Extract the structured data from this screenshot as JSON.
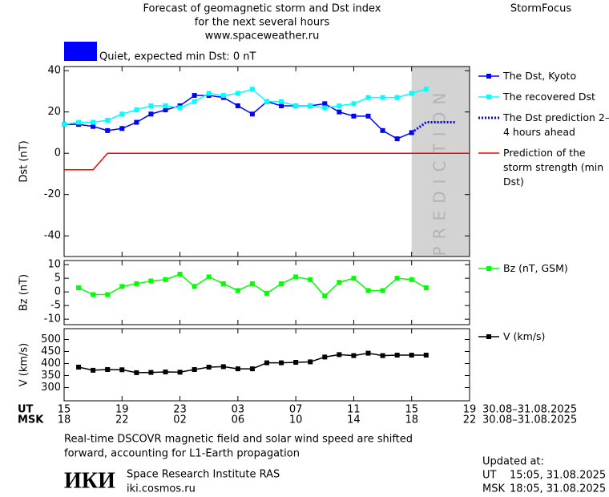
{
  "header": {
    "title": [
      "Forecast of geomagnetic storm and Dst index",
      "for the next several hours",
      "www.spaceweather.ru"
    ],
    "brand": "StormFocus"
  },
  "status": {
    "color": "#0000ff",
    "text": "Quiet, expected min Dst: 0 nT"
  },
  "chart_data": [
    {
      "type": "line",
      "ylabel": "Dst (nT)",
      "xlim": [
        0,
        28
      ],
      "ylim": [
        -50,
        42
      ],
      "yticks": [
        -40,
        -20,
        0,
        20,
        40
      ],
      "shade": {
        "x": [
          24,
          28
        ],
        "color": "#d3d3d3",
        "label": "PREDICTION"
      },
      "series": [
        {
          "name": "The Dst, Kyoto",
          "color": "#0000ff",
          "marker": "square",
          "x": [
            0,
            1,
            2,
            3,
            4,
            5,
            6,
            7,
            8,
            9,
            10,
            11,
            12,
            13,
            14,
            15,
            16,
            17,
            18,
            19,
            20,
            21,
            22,
            23,
            24
          ],
          "values": [
            14,
            14,
            13,
            11,
            12,
            15,
            19,
            21,
            23,
            28,
            28,
            27,
            23,
            19,
            25,
            23,
            23,
            23,
            24,
            20,
            18,
            18,
            11,
            7,
            10
          ]
        },
        {
          "name": "The recovered Dst",
          "color": "#00ffff",
          "marker": "square",
          "x": [
            0,
            1,
            2,
            3,
            4,
            5,
            6,
            7,
            8,
            9,
            10,
            11,
            12,
            13,
            14,
            15,
            16,
            17,
            18,
            19,
            20,
            21,
            22,
            23,
            24,
            25
          ],
          "values": [
            14,
            15,
            15,
            16,
            19,
            21,
            23,
            23,
            22,
            25,
            29,
            28,
            29,
            31,
            25,
            25,
            23,
            23,
            22,
            23,
            24,
            27,
            27,
            27,
            29,
            31
          ]
        },
        {
          "name": "The Dst prediction 2–4 hours ahead",
          "color": "#0000ff",
          "style": "dotted",
          "x": [
            24,
            25,
            27
          ],
          "values": [
            10,
            15,
            15
          ]
        },
        {
          "name": "Prediction of the storm strength (min Dst)",
          "color": "#ff0000",
          "x": [
            0,
            2,
            3,
            28
          ],
          "values": [
            -8,
            -8,
            0,
            0
          ]
        }
      ]
    },
    {
      "type": "line",
      "ylabel": "Bz (nT)",
      "xlim": [
        0,
        28
      ],
      "ylim": [
        -12,
        11.5
      ],
      "yticks": [
        -10,
        -5,
        0,
        5,
        10
      ],
      "series": [
        {
          "name": "Bz (nT, GSM)",
          "color": "#00ff00",
          "marker": "square",
          "x": [
            1,
            2,
            3,
            4,
            5,
            6,
            7,
            8,
            9,
            10,
            11,
            12,
            13,
            14,
            15,
            16,
            17,
            18,
            19,
            20,
            21,
            22,
            23,
            24,
            25
          ],
          "values": [
            1.5,
            -1,
            -1,
            2,
            3,
            4,
            4.5,
            6.5,
            2,
            5.5,
            3,
            0.5,
            3,
            -0.5,
            3,
            5.5,
            4.5,
            -1.5,
            3.5,
            5,
            0.5,
            0.5,
            5,
            4.5,
            1.5
          ]
        }
      ]
    },
    {
      "type": "line",
      "ylabel": "V (km/s)",
      "xlim": [
        0,
        28
      ],
      "ylim": [
        245,
        545
      ],
      "yticks": [
        300,
        350,
        400,
        450,
        500
      ],
      "xticks": [
        {
          "value": 0,
          "label": "15"
        },
        {
          "value": 4,
          "label": "19"
        },
        {
          "value": 8,
          "label": "23"
        },
        {
          "value": 12,
          "label": "03"
        },
        {
          "value": 16,
          "label": "07"
        },
        {
          "value": 20,
          "label": "11"
        },
        {
          "value": 24,
          "label": "15"
        },
        {
          "value": 28,
          "label": "19"
        }
      ],
      "x2ticks": [
        {
          "value": 0,
          "label": "18"
        },
        {
          "value": 4,
          "label": "22"
        },
        {
          "value": 8,
          "label": "02"
        },
        {
          "value": 12,
          "label": "06"
        },
        {
          "value": 16,
          "label": "10"
        },
        {
          "value": 20,
          "label": "14"
        },
        {
          "value": 24,
          "label": "18"
        },
        {
          "value": 28,
          "label": "22"
        }
      ],
      "series": [
        {
          "name": "V (km/s)",
          "color": "#000000",
          "marker": "square",
          "x": [
            1,
            2,
            3,
            4,
            5,
            6,
            7,
            8,
            9,
            10,
            11,
            12,
            13,
            14,
            15,
            16,
            17,
            18,
            19,
            20,
            21,
            22,
            23,
            24,
            25
          ],
          "values": [
            385,
            372,
            375,
            374,
            362,
            363,
            365,
            364,
            375,
            385,
            387,
            378,
            378,
            403,
            403,
            405,
            407,
            427,
            437,
            433,
            443,
            433,
            435,
            435,
            435
          ]
        }
      ]
    }
  ],
  "time_axis": {
    "ut": "UT",
    "msk": "MSK",
    "ut_dates": "30.08–31.08.2025",
    "msk_dates": "30.08–31.08.2025"
  },
  "footer": {
    "note": [
      "Real-time DSCOVR magnetic field and solar wind speed are shifted",
      "forward, accounting for L1-Earth propagation"
    ],
    "logo": "ИКИ",
    "institute": "Space Research Institute RAS",
    "site": "iki.cosmos.ru",
    "updated": {
      "title": "Updated at:",
      "ut": {
        "label": "UT",
        "time": "15:05, 31.08.2025"
      },
      "msk": {
        "label": "MSK",
        "time": "18:05, 31.08.2025"
      }
    }
  }
}
